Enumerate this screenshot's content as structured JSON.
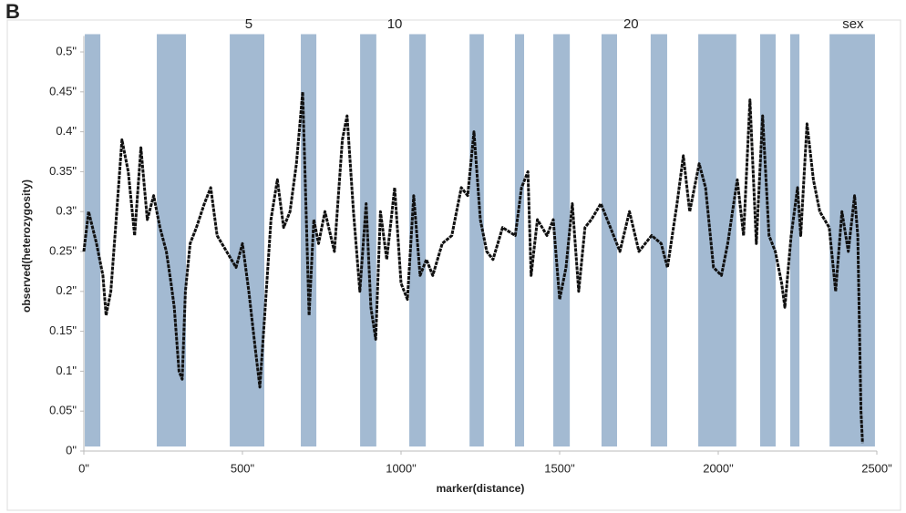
{
  "panel_label": "B",
  "chart_data": {
    "type": "line",
    "ylabel": "observed(heterozygosity)",
    "xlabel": "marker(distance)",
    "xlim": [
      0,
      2500
    ],
    "xticks": [
      {
        "value": 0,
        "label": "0\""
      },
      {
        "value": 500,
        "label": "500\""
      },
      {
        "value": 1000,
        "label": "1000\""
      },
      {
        "value": 1500,
        "label": "1500\""
      },
      {
        "value": 2000,
        "label": "2000\""
      },
      {
        "value": 2500,
        "label": "2500\""
      }
    ],
    "ylim": [
      0,
      0.52
    ],
    "yticks": [
      {
        "value": 0,
        "label": "0\""
      },
      {
        "value": 0.05,
        "label": "0.05\""
      },
      {
        "value": 0.1,
        "label": "0.1\""
      },
      {
        "value": 0.15,
        "label": "0.15\""
      },
      {
        "value": 0.2,
        "label": "0.2\""
      },
      {
        "value": 0.25,
        "label": "0.25\""
      },
      {
        "value": 0.3,
        "label": "0.3\""
      },
      {
        "value": 0.35,
        "label": "0.35\""
      },
      {
        "value": 0.4,
        "label": "0.4\""
      },
      {
        "value": 0.45,
        "label": "0.45\""
      },
      {
        "value": 0.5,
        "label": "0.5\""
      }
    ],
    "band_color": "#a3bad2",
    "bands": [
      [
        3,
        52
      ],
      [
        230,
        322
      ],
      [
        460,
        569
      ],
      [
        684,
        733
      ],
      [
        871,
        922
      ],
      [
        1026,
        1078
      ],
      [
        1216,
        1261
      ],
      [
        1359,
        1388
      ],
      [
        1480,
        1532
      ],
      [
        1632,
        1681
      ],
      [
        1787,
        1839
      ],
      [
        1937,
        2057
      ],
      [
        2132,
        2181
      ],
      [
        2227,
        2256
      ],
      [
        2351,
        2494
      ]
    ],
    "annotations": [
      {
        "text": "5",
        "x": 520
      },
      {
        "text": "10",
        "x": 980
      },
      {
        "text": "20",
        "x": 1725
      },
      {
        "text": "sex",
        "x": 2425
      }
    ],
    "x": [
      0,
      15,
      40,
      60,
      70,
      85,
      100,
      120,
      140,
      160,
      180,
      200,
      220,
      240,
      260,
      275,
      285,
      300,
      310,
      320,
      335,
      355,
      380,
      400,
      420,
      450,
      480,
      500,
      520,
      540,
      555,
      570,
      590,
      610,
      630,
      650,
      670,
      690,
      700,
      710,
      725,
      740,
      760,
      790,
      815,
      830,
      850,
      870,
      890,
      905,
      920,
      935,
      955,
      980,
      1000,
      1020,
      1040,
      1060,
      1080,
      1100,
      1130,
      1160,
      1190,
      1210,
      1230,
      1250,
      1270,
      1290,
      1320,
      1360,
      1380,
      1400,
      1410,
      1430,
      1460,
      1480,
      1500,
      1520,
      1540,
      1560,
      1580,
      1600,
      1630,
      1660,
      1690,
      1720,
      1750,
      1790,
      1820,
      1840,
      1870,
      1890,
      1910,
      1940,
      1960,
      1985,
      2010,
      2030,
      2060,
      2080,
      2100,
      2120,
      2140,
      2160,
      2180,
      2200,
      2210,
      2230,
      2250,
      2260,
      2280,
      2300,
      2320,
      2350,
      2370,
      2390,
      2410,
      2430,
      2440,
      2450,
      2455
    ],
    "series": [
      {
        "color": "#111111",
        "values": [
          0.25,
          0.3,
          0.26,
          0.22,
          0.17,
          0.2,
          0.28,
          0.39,
          0.35,
          0.27,
          0.38,
          0.29,
          0.32,
          0.28,
          0.25,
          0.21,
          0.18,
          0.1,
          0.09,
          0.2,
          0.26,
          0.28,
          0.31,
          0.33,
          0.27,
          0.25,
          0.23,
          0.26,
          0.2,
          0.13,
          0.08,
          0.17,
          0.29,
          0.34,
          0.28,
          0.3,
          0.36,
          0.45,
          0.31,
          0.17,
          0.29,
          0.26,
          0.3,
          0.25,
          0.39,
          0.42,
          0.3,
          0.2,
          0.31,
          0.18,
          0.14,
          0.3,
          0.24,
          0.33,
          0.21,
          0.19,
          0.32,
          0.22,
          0.24,
          0.22,
          0.26,
          0.27,
          0.33,
          0.32,
          0.4,
          0.29,
          0.25,
          0.24,
          0.28,
          0.27,
          0.33,
          0.35,
          0.22,
          0.29,
          0.27,
          0.29,
          0.19,
          0.23,
          0.31,
          0.2,
          0.28,
          0.29,
          0.31,
          0.28,
          0.25,
          0.3,
          0.25,
          0.27,
          0.26,
          0.23,
          0.31,
          0.37,
          0.3,
          0.36,
          0.33,
          0.23,
          0.22,
          0.26,
          0.34,
          0.27,
          0.44,
          0.26,
          0.42,
          0.27,
          0.25,
          0.21,
          0.18,
          0.27,
          0.33,
          0.27,
          0.41,
          0.34,
          0.3,
          0.28,
          0.2,
          0.3,
          0.25,
          0.32,
          0.27,
          0.05,
          0.01
        ]
      }
    ]
  }
}
